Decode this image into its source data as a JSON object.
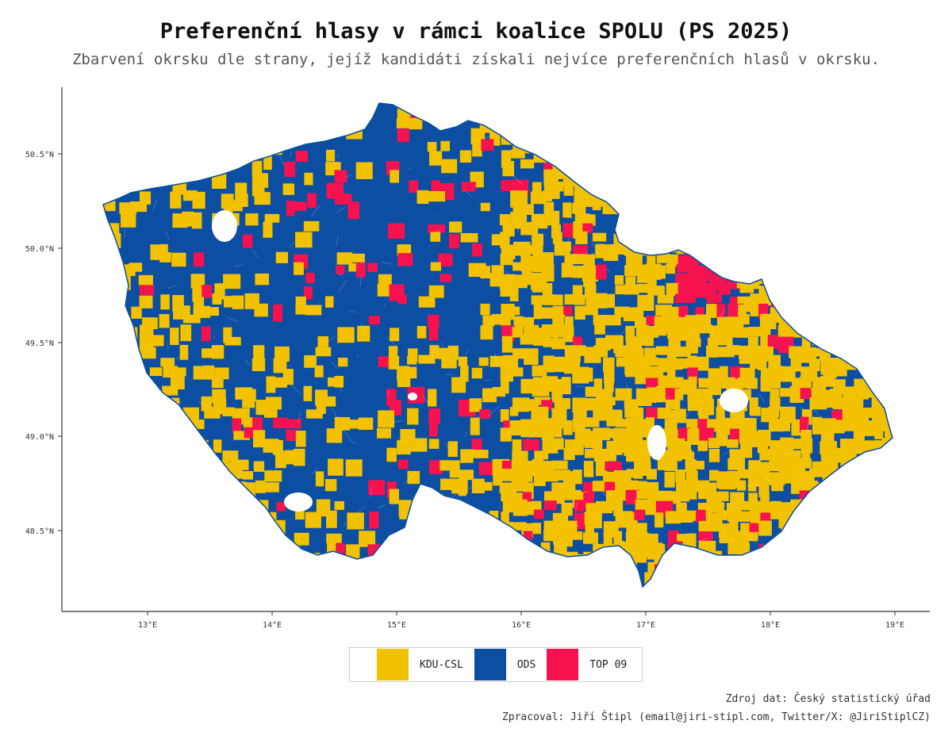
{
  "title": "Preferenční hlasy v rámci koalice SPOLU (PS 2025)",
  "subtitle": "Zbarvení okrsku dle strany, jejíž kandidáti získali nejvíce preferenčních hlasů v okrsku.",
  "axes": {
    "x_ticks": [
      "13°E",
      "14°E",
      "15°E",
      "16°E",
      "17°E",
      "18°E",
      "19°E"
    ],
    "y_ticks": [
      "50.5°N",
      "50.0°N",
      "49.5°N",
      "49.0°N",
      "48.5°N"
    ]
  },
  "legend": [
    {
      "label": "KDU-CSL",
      "color": "#F2C200"
    },
    {
      "label": "ODS",
      "color": "#0B4EA2"
    },
    {
      "label": "TOP 09",
      "color": "#F5124F"
    }
  ],
  "source_lines": [
    "Zdroj dat: Český statistický úřad",
    "Zpracoval: Jiří Štipl (email@jiri-stipl.com, Twitter/X: @JiriStiplCZ)"
  ]
}
